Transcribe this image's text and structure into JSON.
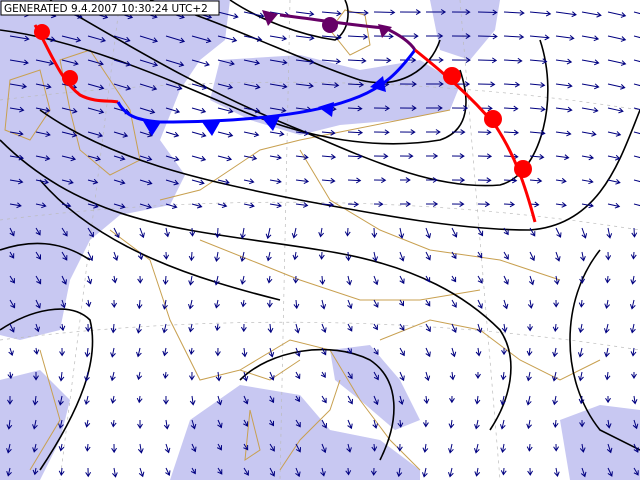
{
  "map": {
    "label": "GENERATED 9.4.2007 10:30:24 UTC+2"
  }
}
